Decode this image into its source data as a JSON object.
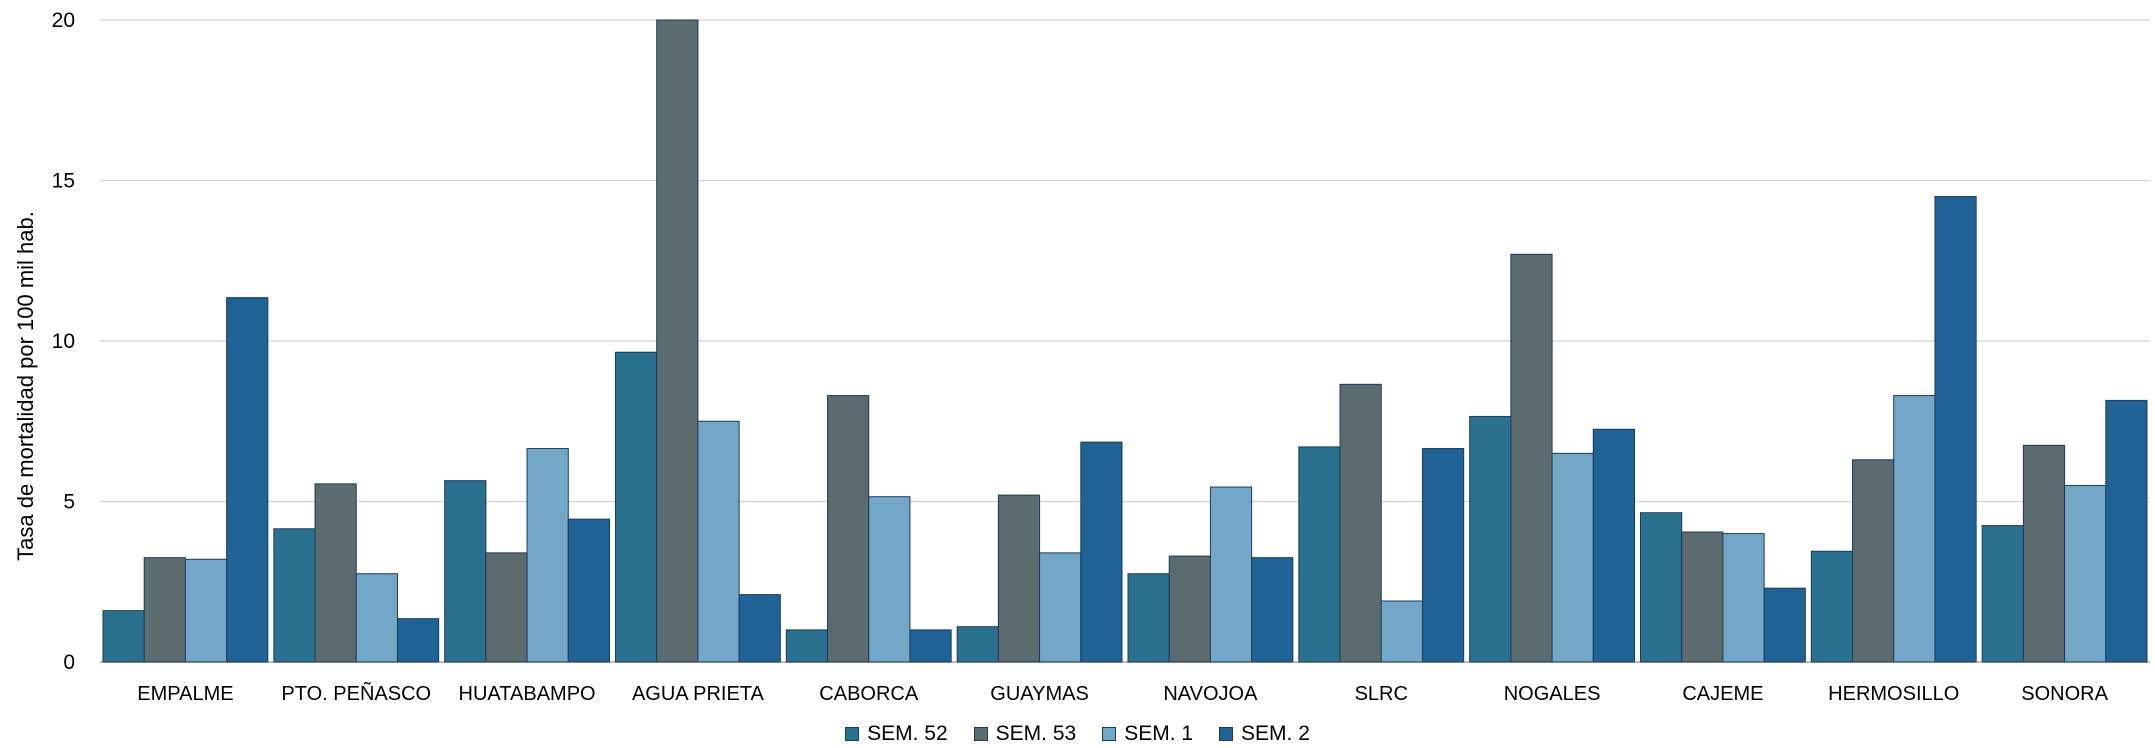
{
  "chart_data": {
    "type": "bar",
    "title": "",
    "xlabel": "",
    "ylabel": "Tasa de mortalidad por 100 mil hab.",
    "ylim": [
      0,
      20
    ],
    "yticks": [
      0,
      5,
      10,
      15,
      20
    ],
    "grid": true,
    "legend_position": "bottom",
    "categories": [
      "EMPALME",
      "PTO. PEÑASCO",
      "HUATABAMPO",
      "AGUA PRIETA",
      "CABORCA",
      "GUAYMAS",
      "NAVOJOA",
      "SLRC",
      "NOGALES",
      "CAJEME",
      "HERMOSILLO",
      "SONORA"
    ],
    "series": [
      {
        "name": "SEM. 52",
        "color": "#2a708f",
        "values": [
          1.6,
          4.15,
          5.65,
          9.65,
          1.0,
          1.1,
          2.75,
          6.7,
          7.65,
          4.65,
          3.45,
          4.25
        ]
      },
      {
        "name": "SEM. 53",
        "color": "#5b6b6e",
        "values": [
          3.25,
          5.55,
          3.4,
          20.0,
          8.3,
          5.2,
          3.3,
          8.65,
          12.7,
          4.05,
          6.3,
          6.75
        ]
      },
      {
        "name": "SEM. 1",
        "color": "#72a7c7",
        "values": [
          3.2,
          2.75,
          6.65,
          7.5,
          5.15,
          3.4,
          5.45,
          1.9,
          6.5,
          4.0,
          8.3,
          5.5
        ]
      },
      {
        "name": "SEM. 2",
        "color": "#1e6296",
        "values": [
          11.35,
          1.35,
          4.45,
          2.1,
          1.0,
          6.85,
          3.25,
          6.65,
          7.25,
          2.3,
          14.5,
          8.15
        ]
      }
    ]
  }
}
